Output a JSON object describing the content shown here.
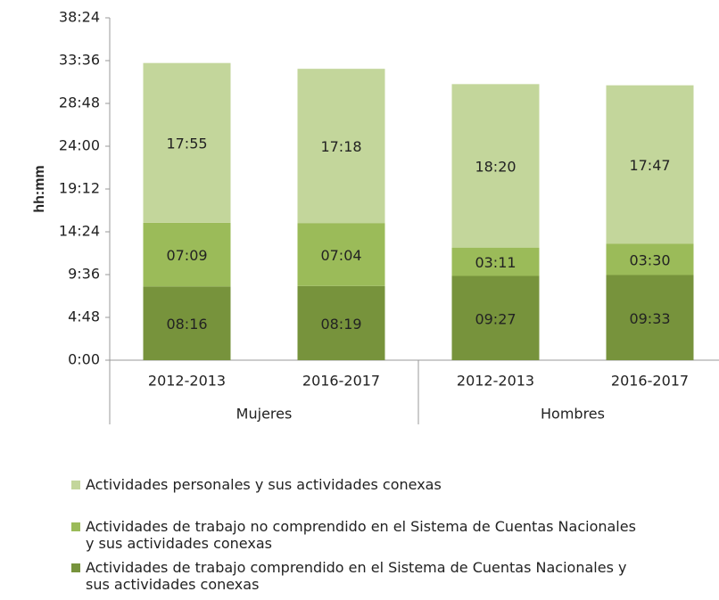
{
  "chart_data": {
    "type": "stacked_bar",
    "y_label": "hh:mm",
    "categories": [
      "2012-2013",
      "2016-2017",
      "2012-2013",
      "2016-2017"
    ],
    "groups": [
      "Mujeres",
      "Hombres"
    ],
    "ylim": [
      0,
      38.4
    ],
    "yticks": [
      {
        "value": 0,
        "label": "0:00"
      },
      {
        "value": 4.8,
        "label": "4:48"
      },
      {
        "value": 9.6,
        "label": "9:36"
      },
      {
        "value": 14.4,
        "label": "14:24"
      },
      {
        "value": 19.2,
        "label": "19:12"
      },
      {
        "value": 24,
        "label": "24:00"
      },
      {
        "value": 28.8,
        "label": "28:48"
      },
      {
        "value": 33.6,
        "label": "33:36"
      },
      {
        "value": 38.4,
        "label": "38:24"
      }
    ],
    "series": [
      {
        "name": "Actividades de trabajo comprendido en el Sistema de Cuentas Nacionales y sus actividades conexas",
        "color": "#77933c",
        "values": [
          8.2667,
          8.3167,
          9.45,
          9.55
        ],
        "value_labels": [
          "08:16",
          "08:19",
          "09:27",
          "09:33"
        ]
      },
      {
        "name": "Actividades de trabajo no comprendido en el Sistema de Cuentas Nacionales y sus actividades conexas",
        "color": "#9bbb59",
        "values": [
          7.15,
          7.0667,
          3.1833,
          3.5
        ],
        "value_labels": [
          "07:09",
          "07:04",
          "03:11",
          "03:30"
        ]
      },
      {
        "name": "Actividades personales y sus actividades conexas",
        "color": "#c3d69b",
        "values": [
          17.9167,
          17.3,
          18.3333,
          17.7833
        ],
        "value_labels": [
          "17:55",
          "17:18",
          "18:20",
          "17:47"
        ]
      }
    ]
  }
}
